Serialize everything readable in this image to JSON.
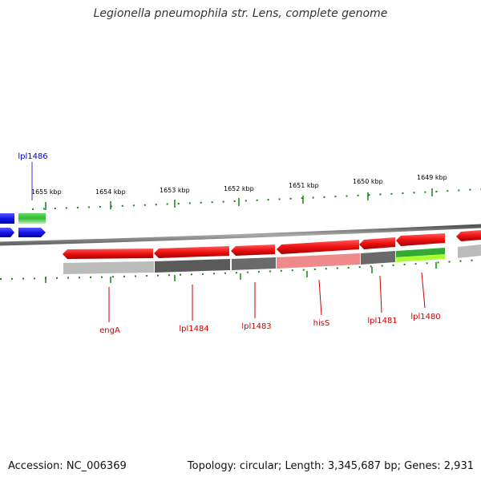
{
  "title": "Legionella pneumophila str. Lens, complete genome",
  "footer": {
    "accession": "Accession: NC_006369",
    "summary": "Topology: circular; Length: 3,345,687 bp; Genes: 2,931"
  },
  "scale": {
    "unit": "kbp",
    "ticks": [
      {
        "kbp": 1655,
        "label": "1655 kbp"
      },
      {
        "kbp": 1654,
        "label": "1654 kbp"
      },
      {
        "kbp": 1653,
        "label": "1653 kbp"
      },
      {
        "kbp": 1652,
        "label": "1652 kbp"
      },
      {
        "kbp": 1651,
        "label": "1651 kbp"
      },
      {
        "kbp": 1650,
        "label": "1650 kbp"
      },
      {
        "kbp": 1649,
        "label": "1649 kbp"
      }
    ]
  },
  "colors": {
    "forward_gene": "#1414ee",
    "forward_gene_green": "#33bb33",
    "reverse_gene": "#ee1111",
    "reverse_label": "#cc0000",
    "forward_label": "#0000cc",
    "backbone": "#888888",
    "tick": "#118811",
    "track_dark": "#5a5a5a",
    "track_light": "#bbbbbb",
    "track_pink": "#f08a8a",
    "track_green": "#33aa33",
    "track_lime": "#aaff33"
  },
  "genes": [
    {
      "label": "lpl1486",
      "strand": "forward"
    },
    {
      "label": "engA",
      "strand": "reverse"
    },
    {
      "label": "lpl1484",
      "strand": "reverse"
    },
    {
      "label": "lpl1483",
      "strand": "reverse"
    },
    {
      "label": "hisS",
      "strand": "reverse"
    },
    {
      "label": "lpl1481",
      "strand": "reverse"
    },
    {
      "label": "lpl1480",
      "strand": "reverse"
    }
  ]
}
